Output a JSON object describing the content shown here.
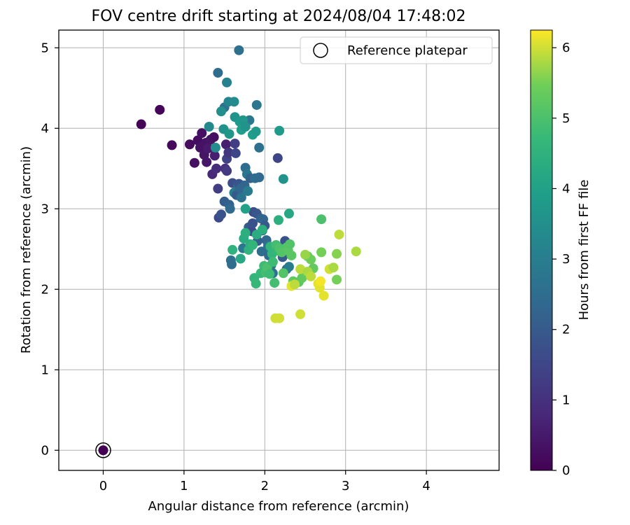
{
  "chart_data": {
    "type": "scatter",
    "title": "FOV centre drift starting at 2024/08/04 17:48:02",
    "xlabel": "Angular distance from reference (arcmin)",
    "ylabel": "Rotation from reference (arcmin)",
    "xlim": [
      -0.55,
      4.9
    ],
    "ylim": [
      -0.25,
      5.22
    ],
    "xticks": [
      0,
      1,
      2,
      3,
      4
    ],
    "yticks": [
      0,
      1,
      2,
      3,
      4,
      5
    ],
    "grid": true,
    "legend": {
      "placement": "top-right",
      "entries": [
        "Reference platepar"
      ]
    },
    "colorbar": {
      "label": "Hours from first FF file",
      "range": [
        0,
        6.25
      ],
      "ticks": [
        0,
        1,
        2,
        3,
        4,
        5,
        6
      ],
      "colormap": "viridis"
    },
    "reference": {
      "x": 0,
      "y": 0,
      "c": 0
    },
    "points": [
      [
        0.47,
        4.05,
        0.05
      ],
      [
        0.7,
        4.23,
        0.1
      ],
      [
        0.85,
        3.79,
        0.15
      ],
      [
        1.07,
        3.8,
        0.2
      ],
      [
        1.13,
        3.57,
        0.3
      ],
      [
        1.17,
        3.85,
        0.25
      ],
      [
        1.2,
        3.76,
        0.35
      ],
      [
        1.22,
        3.94,
        0.3
      ],
      [
        1.25,
        3.67,
        0.4
      ],
      [
        1.27,
        3.82,
        0.35
      ],
      [
        1.28,
        3.58,
        0.45
      ],
      [
        1.3,
        3.75,
        0.5
      ],
      [
        1.33,
        3.86,
        0.4
      ],
      [
        1.37,
        3.89,
        0.3
      ],
      [
        1.35,
        3.43,
        0.8
      ],
      [
        1.38,
        3.66,
        0.6
      ],
      [
        1.4,
        3.5,
        0.9
      ],
      [
        1.42,
        3.25,
        1.3
      ],
      [
        1.43,
        2.89,
        1.6
      ],
      [
        1.46,
        2.93,
        1.8
      ],
      [
        1.5,
        3.09,
        2.1
      ],
      [
        1.51,
        3.5,
        1.0
      ],
      [
        1.52,
        3.8,
        0.6
      ],
      [
        1.53,
        3.47,
        1.2
      ],
      [
        1.53,
        3.62,
        1.4
      ],
      [
        1.55,
        3.7,
        1.1
      ],
      [
        1.56,
        3.05,
        2.2
      ],
      [
        1.57,
        3.0,
        2.4
      ],
      [
        1.58,
        2.36,
        2.6
      ],
      [
        1.59,
        2.31,
        2.5
      ],
      [
        1.6,
        3.32,
        1.7
      ],
      [
        1.62,
        3.2,
        2.9
      ],
      [
        1.63,
        3.81,
        1.3
      ],
      [
        1.64,
        3.69,
        1.5
      ],
      [
        1.65,
        3.17,
        2.0
      ],
      [
        1.67,
        3.28,
        2.6
      ],
      [
        1.68,
        3.31,
        1.9
      ],
      [
        1.7,
        3.25,
        2.3
      ],
      [
        1.71,
        3.14,
        2.7
      ],
      [
        1.73,
        2.51,
        2.8
      ],
      [
        1.75,
        3.29,
        2.3
      ],
      [
        1.76,
        3.51,
        2.5
      ],
      [
        1.78,
        3.43,
        2.8
      ],
      [
        1.79,
        3.22,
        2.9
      ],
      [
        1.8,
        2.77,
        2.0
      ],
      [
        1.82,
        3.38,
        2.2
      ],
      [
        1.84,
        2.72,
        1.6
      ],
      [
        1.85,
        2.82,
        1.8
      ],
      [
        1.86,
        2.96,
        1.7
      ],
      [
        1.88,
        3.38,
        2.5
      ],
      [
        1.9,
        2.94,
        1.9
      ],
      [
        1.91,
        2.6,
        2.1
      ],
      [
        1.93,
        3.39,
        2.4
      ],
      [
        1.95,
        2.88,
        2.2
      ],
      [
        1.96,
        2.47,
        2.5
      ],
      [
        1.97,
        2.73,
        2.2
      ],
      [
        1.98,
        2.87,
        2.3
      ],
      [
        2.0,
        2.79,
        2.0
      ],
      [
        2.02,
        2.61,
        2.3
      ],
      [
        2.04,
        2.54,
        2.6
      ],
      [
        2.05,
        2.42,
        2.3
      ],
      [
        2.07,
        2.49,
        2.6
      ],
      [
        2.08,
        2.3,
        2.8
      ],
      [
        2.1,
        2.2,
        2.7
      ],
      [
        2.16,
        3.63,
        1.5
      ],
      [
        2.22,
        2.4,
        2.0
      ],
      [
        2.25,
        2.6,
        1.8
      ],
      [
        2.27,
        2.25,
        2.5
      ],
      [
        2.3,
        2.28,
        2.9
      ],
      [
        1.42,
        4.69,
        2.5
      ],
      [
        1.5,
        4.26,
        2.6
      ],
      [
        1.53,
        4.57,
        3.1
      ],
      [
        1.55,
        4.33,
        3.2
      ],
      [
        1.68,
        4.97,
        2.6
      ],
      [
        1.81,
        4.1,
        2.8
      ],
      [
        1.9,
        4.29,
        2.8
      ],
      [
        1.93,
        3.76,
        2.6
      ],
      [
        2.23,
        3.37,
        3.6
      ],
      [
        1.31,
        4.02,
        3.3
      ],
      [
        1.39,
        3.76,
        3.4
      ],
      [
        1.46,
        4.21,
        3.5
      ],
      [
        1.49,
        3.99,
        3.6
      ],
      [
        1.56,
        3.93,
        3.7
      ],
      [
        1.62,
        4.33,
        3.4
      ],
      [
        1.63,
        4.14,
        3.6
      ],
      [
        1.69,
        4.08,
        3.8
      ],
      [
        1.71,
        3.98,
        3.9
      ],
      [
        1.73,
        4.1,
        3.7
      ],
      [
        1.76,
        4.02,
        3.6
      ],
      [
        1.85,
        3.92,
        3.9
      ],
      [
        1.89,
        3.96,
        3.8
      ],
      [
        2.18,
        3.97,
        3.8
      ],
      [
        1.76,
        3.0,
        4.0
      ],
      [
        2.3,
        2.94,
        4.2
      ],
      [
        1.6,
        2.49,
        4.5
      ],
      [
        1.7,
        2.38,
        4.2
      ],
      [
        1.74,
        2.63,
        4.3
      ],
      [
        1.76,
        2.7,
        4.4
      ],
      [
        1.8,
        2.49,
        4.5
      ],
      [
        1.82,
        2.56,
        4.4
      ],
      [
        1.85,
        2.55,
        4.6
      ],
      [
        1.87,
        2.14,
        4.6
      ],
      [
        1.89,
        2.07,
        4.7
      ],
      [
        1.9,
        2.68,
        4.3
      ],
      [
        1.95,
        2.2,
        4.7
      ],
      [
        1.97,
        2.74,
        4.4
      ],
      [
        1.99,
        2.29,
        4.8
      ],
      [
        2.01,
        2.21,
        4.9
      ],
      [
        2.03,
        2.27,
        5.0
      ],
      [
        2.06,
        2.19,
        4.8
      ],
      [
        2.07,
        2.53,
        4.6
      ],
      [
        2.09,
        2.44,
        4.6
      ],
      [
        2.1,
        2.34,
        4.8
      ],
      [
        2.12,
        2.08,
        4.9
      ],
      [
        2.14,
        2.55,
        4.9
      ],
      [
        2.16,
        2.48,
        4.7
      ],
      [
        2.17,
        2.86,
        4.4
      ],
      [
        2.18,
        2.51,
        5.0
      ],
      [
        2.21,
        2.46,
        5.1
      ],
      [
        2.23,
        2.2,
        5.1
      ],
      [
        2.27,
        2.52,
        5.1
      ],
      [
        2.29,
        2.48,
        5.2
      ],
      [
        2.31,
        2.56,
        5.1
      ],
      [
        2.33,
        2.42,
        5.2
      ],
      [
        2.35,
        2.1,
        5.3
      ],
      [
        2.42,
        2.09,
        5.2
      ],
      [
        2.46,
        2.14,
        5.3
      ],
      [
        2.53,
        2.41,
        5.3
      ],
      [
        2.57,
        2.37,
        5.4
      ],
      [
        2.6,
        2.26,
        5.3
      ],
      [
        2.7,
        2.46,
        5.5
      ],
      [
        2.7,
        2.87,
        5.0
      ],
      [
        2.89,
        2.44,
        5.6
      ],
      [
        2.89,
        2.12,
        5.5
      ],
      [
        2.13,
        1.64,
        6.0
      ],
      [
        2.18,
        1.64,
        6.0
      ],
      [
        2.33,
        2.04,
        6.1
      ],
      [
        2.37,
        2.06,
        5.9
      ],
      [
        2.44,
        2.25,
        5.9
      ],
      [
        2.44,
        1.69,
        6.0
      ],
      [
        2.5,
        2.43,
        5.7
      ],
      [
        2.53,
        2.22,
        5.8
      ],
      [
        2.57,
        2.16,
        5.9
      ],
      [
        2.66,
        2.07,
        6.1
      ],
      [
        2.68,
        2.02,
        6.1
      ],
      [
        2.73,
        1.92,
        6.1
      ],
      [
        2.8,
        2.25,
        6.0
      ],
      [
        2.85,
        2.27,
        5.8
      ],
      [
        2.92,
        2.68,
        5.9
      ],
      [
        3.13,
        2.47,
        5.8
      ],
      [
        2.69,
        2.1,
        6.2
      ]
    ]
  }
}
